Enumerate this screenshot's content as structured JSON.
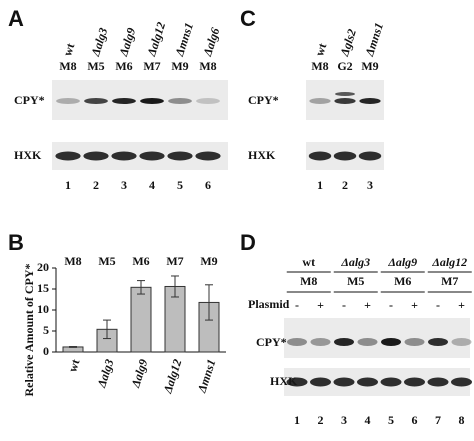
{
  "panels": [
    {
      "letter": "A",
      "strains": [
        "wt",
        "Δalg3",
        "Δalg9",
        "Δalg12",
        "Δmns1",
        "Δalg6"
      ],
      "mutants": [
        "M8",
        "M5",
        "M6",
        "M7",
        "M9",
        "M8"
      ],
      "rows": [
        "CPY*",
        "HXK"
      ],
      "lanes": [
        1,
        2,
        3,
        4,
        5,
        6
      ]
    },
    {
      "letter": "C",
      "strains": [
        "wt",
        "Δgls2",
        "Δmns1"
      ],
      "mutants": [
        "M8",
        "G2",
        "M9"
      ],
      "rows": [
        "CPY*",
        "HXK"
      ],
      "lanes": [
        1,
        2,
        3
      ]
    },
    {
      "letter": "D",
      "strains": [
        "wt",
        "Δalg3",
        "Δalg9",
        "Δalg12"
      ],
      "mutants": [
        "M8",
        "M5",
        "M6",
        "M7"
      ],
      "plasmid_label": "Plasmid",
      "plasmid": [
        "-",
        "+",
        "-",
        "+",
        "-",
        "+",
        "-",
        "+"
      ],
      "rows": [
        "CPY*",
        "HXK"
      ],
      "lanes": [
        1,
        2,
        3,
        4,
        5,
        6,
        7,
        8
      ]
    }
  ],
  "chart_data": {
    "type": "bar",
    "letter": "B",
    "y_label": "Relative Amount of CPY*",
    "categories": [
      "wt",
      "Δalg3",
      "Δalg9",
      "Δalg12",
      "Δmns1"
    ],
    "mutants": [
      "M8",
      "M5",
      "M6",
      "M7",
      "M9"
    ],
    "values": [
      1.2,
      5.4,
      15.4,
      15.6,
      11.8
    ],
    "errors": [
      0.1,
      2.2,
      1.6,
      2.5,
      4.2
    ],
    "ylim": [
      0,
      20
    ],
    "yticks": [
      0,
      5,
      10,
      15,
      20
    ],
    "color": "#bdbdbd"
  }
}
